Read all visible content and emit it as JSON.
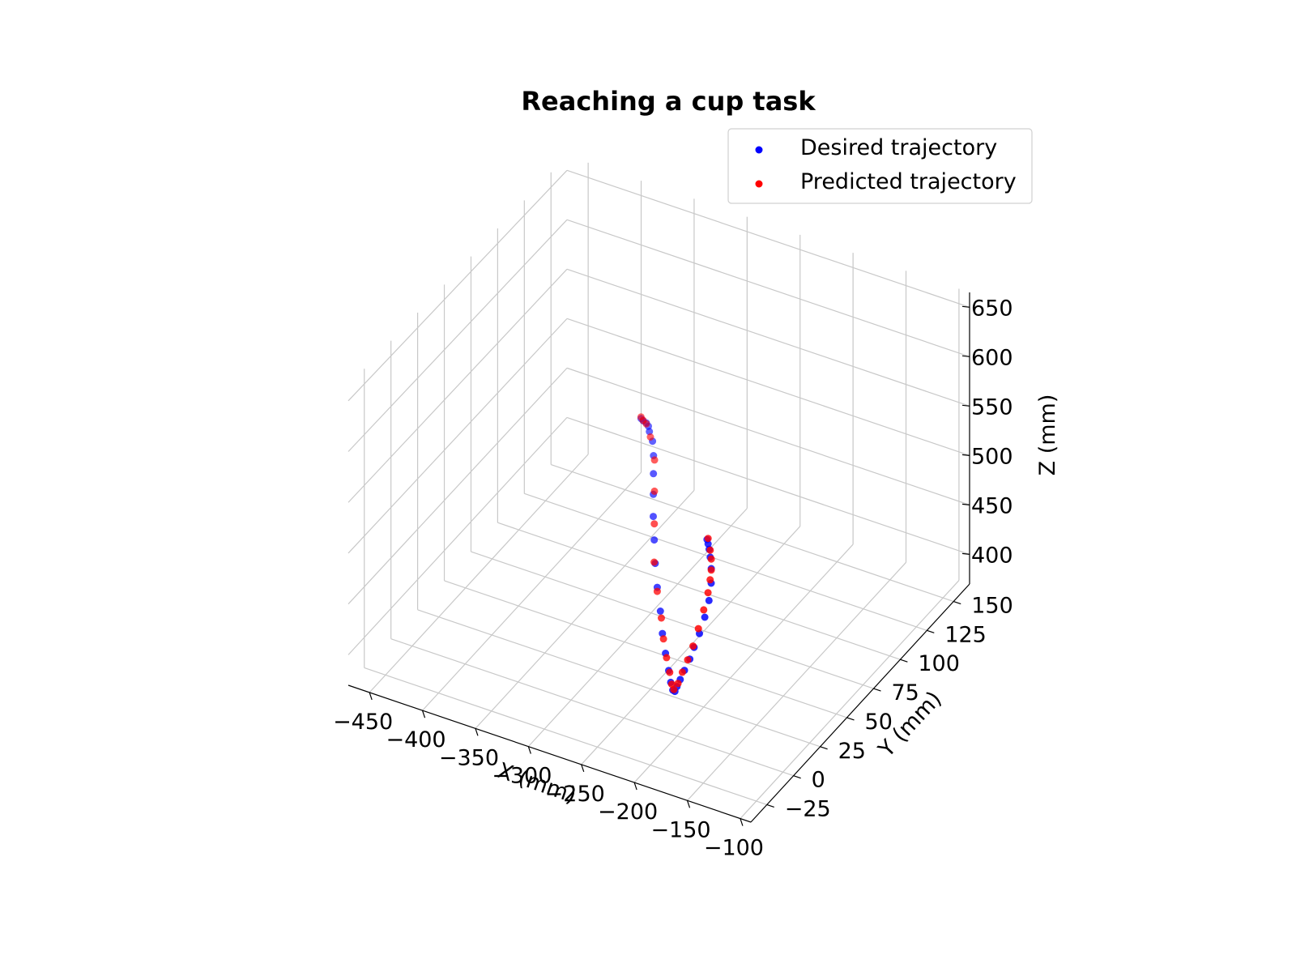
{
  "chart_data": {
    "type": "scatter",
    "title": "Reaching a cup task",
    "xlabel": "X (mm)",
    "ylabel": "Y (mm)",
    "zlabel": "Z (mm)",
    "x_ticks": [
      -450,
      -400,
      -350,
      -300,
      -250,
      -200,
      -150,
      -100
    ],
    "x_tick_labels": [
      "−450",
      "−400",
      "−350",
      "−300",
      "−250",
      "−200",
      "−150",
      "−100"
    ],
    "y_ticks": [
      -25,
      0,
      25,
      50,
      75,
      100,
      125,
      150
    ],
    "y_tick_labels": [
      "−25",
      "0",
      "25",
      "50",
      "75",
      "100",
      "125",
      "150"
    ],
    "z_ticks": [
      400,
      450,
      500,
      550,
      600,
      650
    ],
    "z_tick_labels": [
      "400",
      "450",
      "500",
      "550",
      "600",
      "650"
    ],
    "xlim": [
      -470,
      -90
    ],
    "ylim": [
      -40,
      165
    ],
    "zlim": [
      370,
      665
    ],
    "grid": true,
    "legend_position": "top-right",
    "colors": {
      "desired": "#0000ff",
      "predicted": "#ff0000"
    },
    "series": [
      {
        "name": "Desired trajectory",
        "color": "#0000ff",
        "points": [
          [
            -380,
            145,
            455
          ],
          [
            -375,
            142,
            458
          ],
          [
            -370,
            140,
            460
          ],
          [
            -365,
            137,
            462
          ],
          [
            -360,
            133,
            463
          ],
          [
            -352,
            128,
            462
          ],
          [
            -343,
            120,
            460
          ],
          [
            -333,
            110,
            457
          ],
          [
            -322,
            99,
            453
          ],
          [
            -310,
            87,
            449
          ],
          [
            -297,
            75,
            444
          ],
          [
            -284,
            63,
            439
          ],
          [
            -270,
            51,
            434
          ],
          [
            -256,
            40,
            428
          ],
          [
            -243,
            29,
            423
          ],
          [
            -231,
            20,
            418
          ],
          [
            -220,
            12,
            414
          ],
          [
            -212,
            6,
            412
          ],
          [
            -206,
            2,
            411
          ],
          [
            -203,
            1,
            412
          ],
          [
            -202,
            2,
            416
          ],
          [
            -201,
            4,
            421
          ],
          [
            -200,
            7,
            427
          ],
          [
            -199,
            11,
            434
          ],
          [
            -199,
            15,
            441
          ],
          [
            -199,
            20,
            449
          ],
          [
            -200,
            26,
            458
          ],
          [
            -202,
            32,
            467
          ],
          [
            -206,
            38,
            476
          ],
          [
            -211,
            43,
            483
          ],
          [
            -216,
            47,
            488
          ],
          [
            -220,
            50,
            491
          ],
          [
            -223,
            52,
            493
          ],
          [
            -226,
            54,
            494
          ]
        ]
      },
      {
        "name": "Predicted trajectory",
        "color": "#ff0000",
        "points": [
          [
            -381,
            146,
            455
          ],
          [
            -376,
            143,
            457
          ],
          [
            -370,
            140,
            459
          ],
          [
            -357,
            131,
            461
          ],
          [
            -340,
            118,
            459
          ],
          [
            -322,
            100,
            455
          ],
          [
            -305,
            83,
            448
          ],
          [
            -285,
            63,
            440
          ],
          [
            -268,
            49,
            433
          ],
          [
            -252,
            37,
            426
          ],
          [
            -240,
            27,
            421
          ],
          [
            -228,
            18,
            417
          ],
          [
            -218,
            11,
            414
          ],
          [
            -210,
            5,
            412
          ],
          [
            -205,
            2,
            412
          ],
          [
            -202,
            3,
            418
          ],
          [
            -201,
            6,
            426
          ],
          [
            -200,
            10,
            434
          ],
          [
            -200,
            15,
            442
          ],
          [
            -201,
            21,
            452
          ],
          [
            -203,
            28,
            462
          ],
          [
            -206,
            35,
            470
          ],
          [
            -209,
            40,
            476
          ],
          [
            -212,
            44,
            480
          ],
          [
            -216,
            48,
            485
          ],
          [
            -220,
            51,
            489
          ],
          [
            -226,
            55,
            494
          ]
        ]
      }
    ]
  }
}
